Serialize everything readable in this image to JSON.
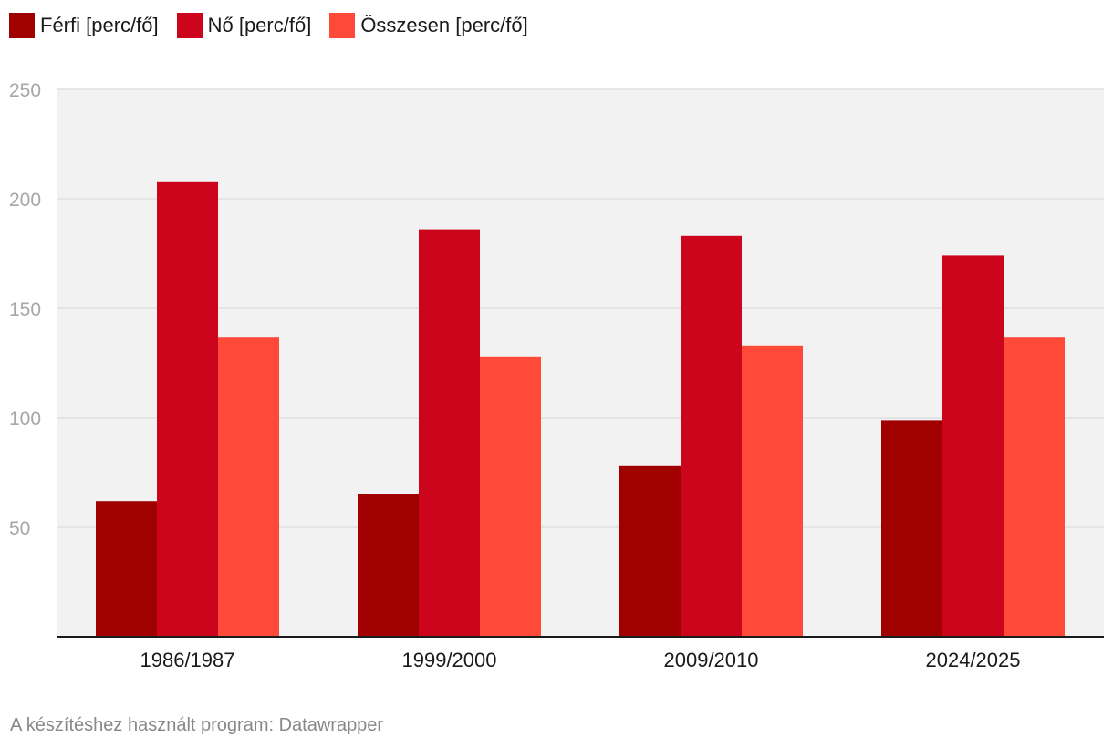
{
  "chart_data": {
    "type": "bar",
    "title": "",
    "xlabel": "",
    "ylabel": "",
    "categories": [
      "1986/1987",
      "1999/2000",
      "2009/2010",
      "2024/2025"
    ],
    "series": [
      {
        "name": "Férfi [perc/fő]",
        "color": "#a10000",
        "values": [
          62,
          65,
          78,
          99
        ]
      },
      {
        "name": "Nő [perc/fő]",
        "color": "#cc051c",
        "values": [
          208,
          186,
          183,
          174
        ]
      },
      {
        "name": "Összesen [perc/fő]",
        "color": "#ff4a3a",
        "values": [
          137,
          128,
          133,
          137
        ]
      }
    ],
    "ylim": [
      0,
      250
    ],
    "yticks": [
      50,
      100,
      150,
      200,
      250
    ],
    "grid": true,
    "legend": "top-left",
    "plot_background": "#f2f2f2"
  },
  "credit": "A készítéshez használt program: Datawrapper"
}
